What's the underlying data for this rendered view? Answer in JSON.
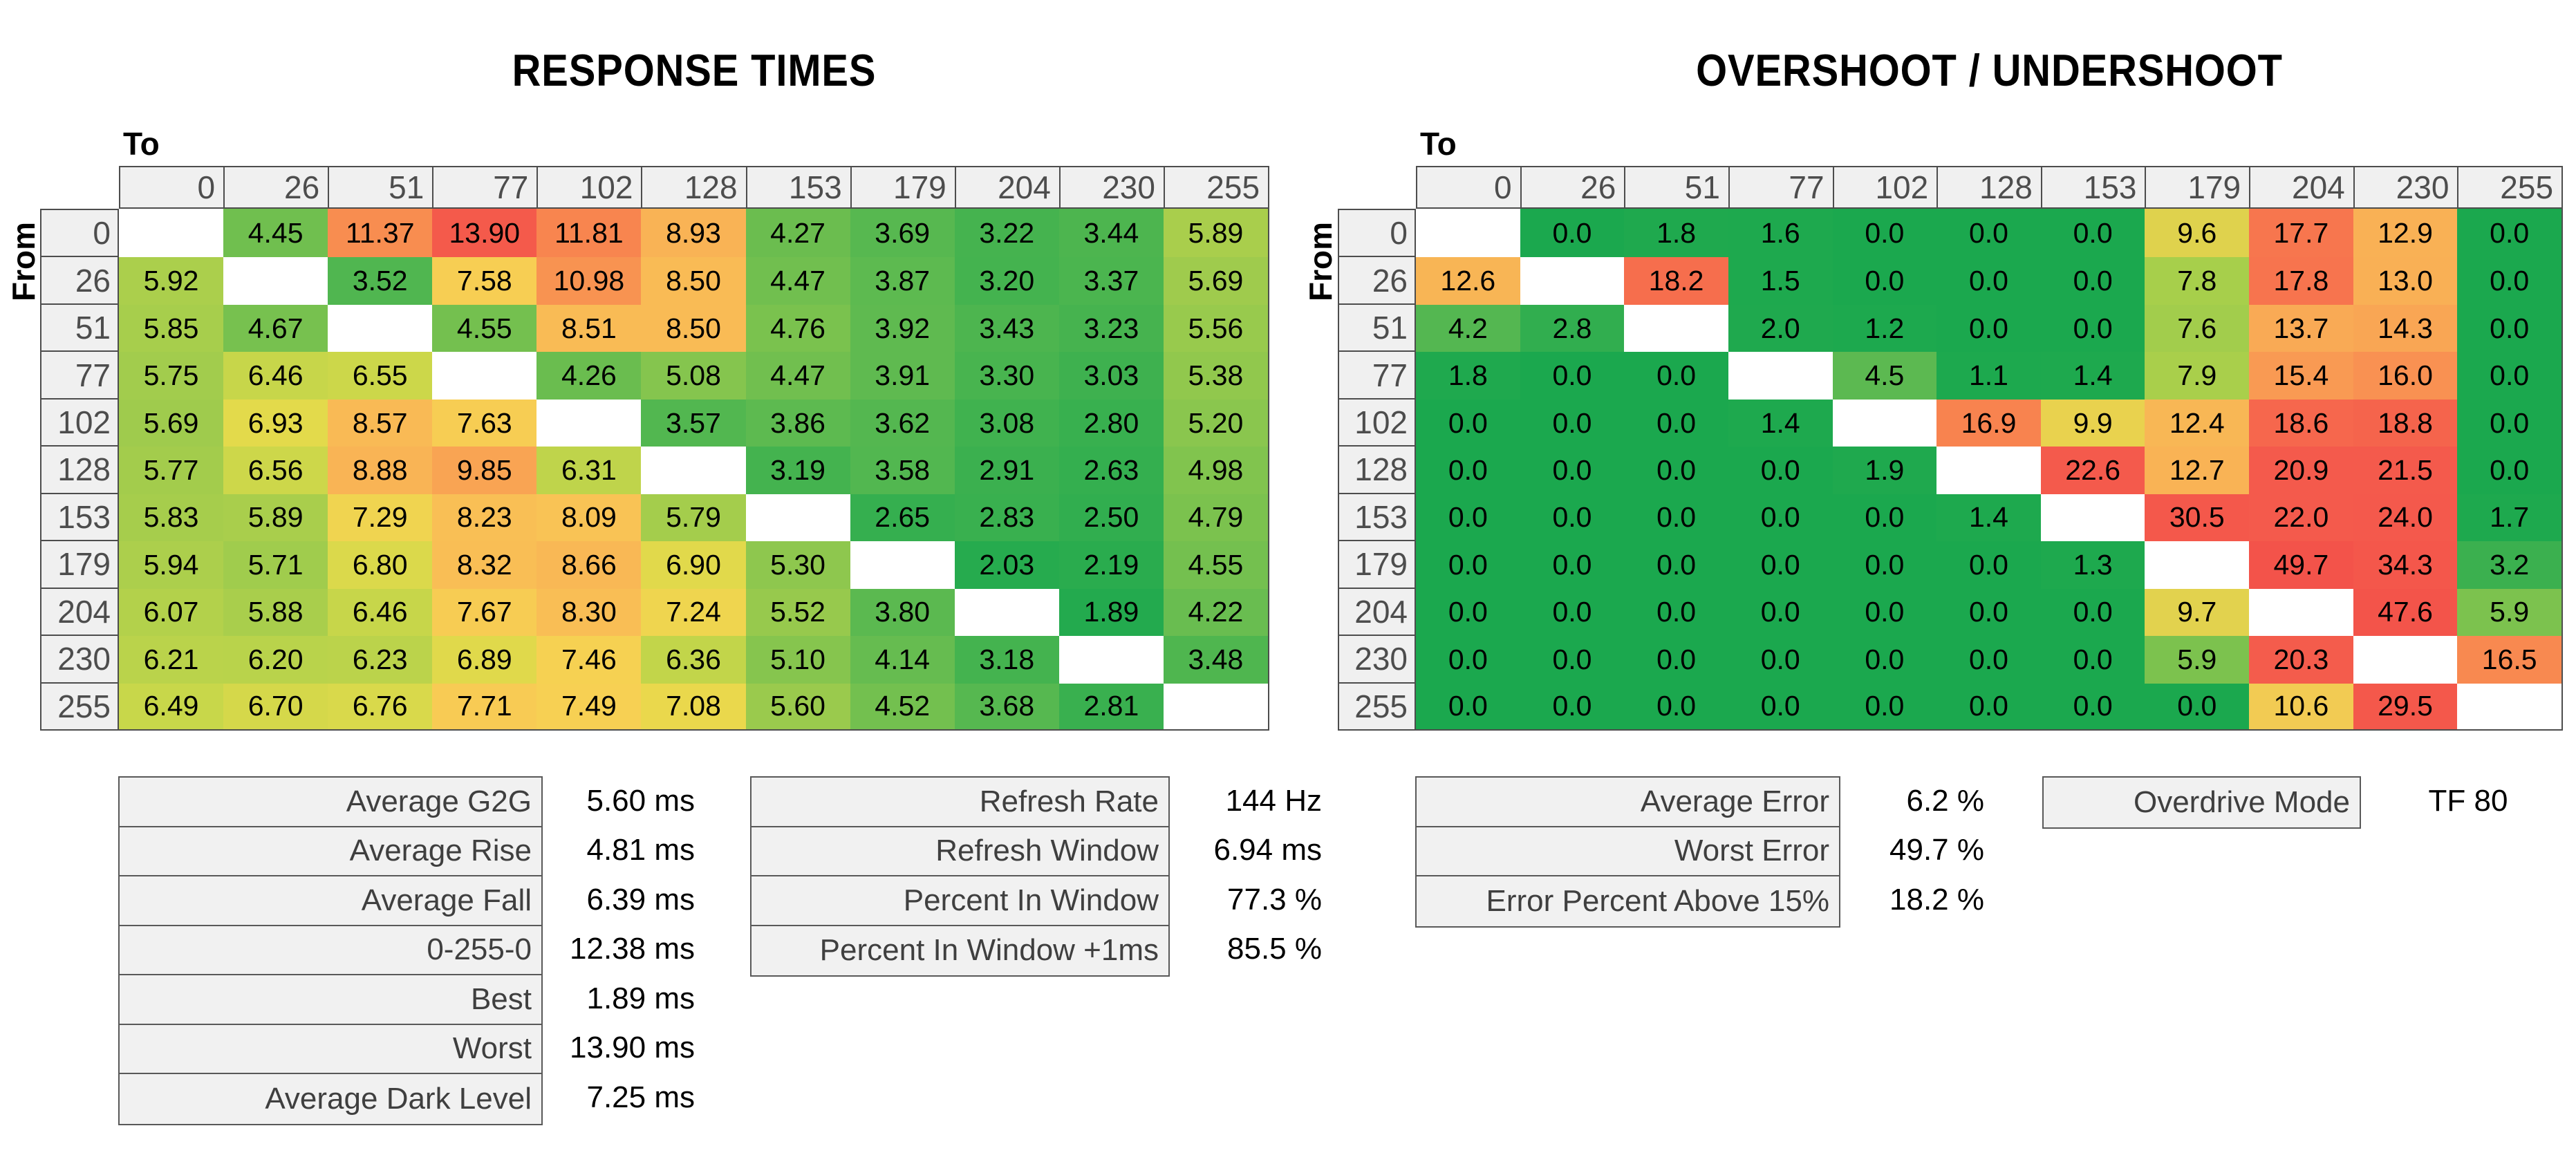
{
  "titles": {
    "response": "RESPONSE TIMES",
    "overshoot": "OVERSHOOT / UNDERSHOOT"
  },
  "axis": {
    "to": "To",
    "from": "From"
  },
  "levels": [
    "0",
    "26",
    "51",
    "77",
    "102",
    "128",
    "153",
    "179",
    "204",
    "230",
    "255"
  ],
  "colors": {
    "background": "#ffffff",
    "heatmap_header_bg": "#f0f0f0",
    "heatmap_border": "#4d4d4d",
    "heatmap_header_text": "#4d4d4d",
    "heatmap_cell_text": "#000000",
    "diagonal_bg": "#ffffff",
    "stats_bg": "#f1f1f1",
    "stats_border": "#595959",
    "stats_label_text": "#3f3f3f",
    "stats_value_text": "#000000",
    "scale_green": "#1ba84e",
    "scale_yellow": "#ecd24e",
    "scale_red": "#f3534a"
  },
  "chart_data": [
    {
      "type": "heatmap",
      "title": "RESPONSE TIMES",
      "xlabel": "To",
      "ylabel": "From",
      "unit": "ms",
      "categories": [
        "0",
        "26",
        "51",
        "77",
        "102",
        "128",
        "153",
        "179",
        "204",
        "230",
        "255"
      ],
      "values": [
        [
          null,
          "4.45",
          "11.37",
          "13.90",
          "11.81",
          "8.93",
          "4.27",
          "3.69",
          "3.22",
          "3.44",
          "5.89"
        ],
        [
          "5.92",
          null,
          "3.52",
          "7.58",
          "10.98",
          "8.50",
          "4.47",
          "3.87",
          "3.20",
          "3.37",
          "5.69"
        ],
        [
          "5.85",
          "4.67",
          null,
          "4.55",
          "8.51",
          "8.50",
          "4.76",
          "3.92",
          "3.43",
          "3.23",
          "5.56"
        ],
        [
          "5.75",
          "6.46",
          "6.55",
          null,
          "4.26",
          "5.08",
          "4.47",
          "3.91",
          "3.30",
          "3.03",
          "5.38"
        ],
        [
          "5.69",
          "6.93",
          "8.57",
          "7.63",
          null,
          "3.57",
          "3.86",
          "3.62",
          "3.08",
          "2.80",
          "5.20"
        ],
        [
          "5.77",
          "6.56",
          "8.88",
          "9.85",
          "6.31",
          null,
          "3.19",
          "3.58",
          "2.91",
          "2.63",
          "4.98"
        ],
        [
          "5.83",
          "5.89",
          "7.29",
          "8.23",
          "8.09",
          "5.79",
          null,
          "2.65",
          "2.83",
          "2.50",
          "4.79"
        ],
        [
          "5.94",
          "5.71",
          "6.80",
          "8.32",
          "8.66",
          "6.90",
          "5.30",
          null,
          "2.03",
          "2.19",
          "4.55"
        ],
        [
          "6.07",
          "5.88",
          "6.46",
          "7.67",
          "8.30",
          "7.24",
          "5.52",
          "3.80",
          null,
          "1.89",
          "4.22"
        ],
        [
          "6.21",
          "6.20",
          "6.23",
          "6.89",
          "7.46",
          "6.36",
          "5.10",
          "4.14",
          "3.18",
          null,
          "3.48"
        ],
        [
          "6.49",
          "6.70",
          "6.76",
          "7.71",
          "7.49",
          "7.08",
          "5.60",
          "4.52",
          "3.68",
          "2.81",
          null
        ]
      ],
      "color_stops": [
        [
          1.89,
          "#23aa4e"
        ],
        [
          3.0,
          "#3db14f"
        ],
        [
          4.0,
          "#62bb50"
        ],
        [
          5.0,
          "#82c44e"
        ],
        [
          5.6,
          "#9aca4d"
        ],
        [
          6.5,
          "#c9d74a"
        ],
        [
          7.0,
          "#e7da4b"
        ],
        [
          7.5,
          "#f7d053"
        ],
        [
          8.2,
          "#f9c055"
        ],
        [
          9.0,
          "#f9b255"
        ],
        [
          10.0,
          "#f9a253"
        ],
        [
          11.5,
          "#f88b50"
        ],
        [
          12.5,
          "#f7784e"
        ],
        [
          13.9,
          "#f45a4b"
        ]
      ]
    },
    {
      "type": "heatmap",
      "title": "OVERSHOOT / UNDERSHOOT",
      "xlabel": "To",
      "ylabel": "From",
      "unit": "%",
      "categories": [
        "0",
        "26",
        "51",
        "77",
        "102",
        "128",
        "153",
        "179",
        "204",
        "230",
        "255"
      ],
      "values": [
        [
          null,
          "0.0",
          "1.8",
          "1.6",
          "0.0",
          "0.0",
          "0.0",
          "9.6",
          "17.7",
          "12.9",
          "0.0"
        ],
        [
          "12.6",
          null,
          "18.2",
          "1.5",
          "0.0",
          "0.0",
          "0.0",
          "7.8",
          "17.8",
          "13.0",
          "0.0"
        ],
        [
          "4.2",
          "2.8",
          null,
          "2.0",
          "1.2",
          "0.0",
          "0.0",
          "7.6",
          "13.7",
          "14.3",
          "0.0"
        ],
        [
          "1.8",
          "0.0",
          "0.0",
          null,
          "4.5",
          "1.1",
          "1.4",
          "7.9",
          "15.4",
          "16.0",
          "0.0"
        ],
        [
          "0.0",
          "0.0",
          "0.0",
          "1.4",
          null,
          "16.9",
          "9.9",
          "12.4",
          "18.6",
          "18.8",
          "0.0"
        ],
        [
          "0.0",
          "0.0",
          "0.0",
          "0.0",
          "1.9",
          null,
          "22.6",
          "12.7",
          "20.9",
          "21.5",
          "0.0"
        ],
        [
          "0.0",
          "0.0",
          "0.0",
          "0.0",
          "0.0",
          "1.4",
          null,
          "30.5",
          "22.0",
          "24.0",
          "1.7"
        ],
        [
          "0.0",
          "0.0",
          "0.0",
          "0.0",
          "0.0",
          "0.0",
          "1.3",
          null,
          "49.7",
          "34.3",
          "3.2"
        ],
        [
          "0.0",
          "0.0",
          "0.0",
          "0.0",
          "0.0",
          "0.0",
          "0.0",
          "9.7",
          null,
          "47.6",
          "5.9"
        ],
        [
          "0.0",
          "0.0",
          "0.0",
          "0.0",
          "0.0",
          "0.0",
          "0.0",
          "5.9",
          "20.3",
          null,
          "16.5"
        ],
        [
          "0.0",
          "0.0",
          "0.0",
          "0.0",
          "0.0",
          "0.0",
          "0.0",
          "0.0",
          "10.6",
          "29.5",
          null
        ]
      ],
      "color_stops": [
        [
          0,
          "#1ba84e"
        ],
        [
          2,
          "#1fa94e"
        ],
        [
          3,
          "#36af4f"
        ],
        [
          4.5,
          "#5cb951"
        ],
        [
          6,
          "#7ec34e"
        ],
        [
          8,
          "#abd04b"
        ],
        [
          10,
          "#ecd24e"
        ],
        [
          11,
          "#f6c756"
        ],
        [
          13,
          "#f9b055"
        ],
        [
          15,
          "#f9a054"
        ],
        [
          17,
          "#f8814f"
        ],
        [
          19,
          "#f5614c"
        ],
        [
          21,
          "#f45a4c"
        ],
        [
          50,
          "#f3534a"
        ]
      ]
    }
  ],
  "stats": {
    "response_summary": [
      {
        "label": "Average G2G",
        "value": "5.60 ms"
      },
      {
        "label": "Average Rise",
        "value": "4.81 ms"
      },
      {
        "label": "Average Fall",
        "value": "6.39 ms"
      },
      {
        "label": "0-255-0",
        "value": "12.38 ms"
      },
      {
        "label": "Best",
        "value": "1.89 ms"
      },
      {
        "label": "Worst",
        "value": "13.90 ms"
      },
      {
        "label": "Average Dark Level",
        "value": "7.25 ms"
      }
    ],
    "refresh_summary": [
      {
        "label": "Refresh Rate",
        "value": "144 Hz"
      },
      {
        "label": "Refresh Window",
        "value": "6.94 ms"
      },
      {
        "label": "Percent In Window",
        "value": "77.3 %"
      },
      {
        "label": "Percent In Window +1ms",
        "value": "85.5 %"
      }
    ],
    "error_summary": [
      {
        "label": "Average Error",
        "value": "6.2 %"
      },
      {
        "label": "Worst Error",
        "value": "49.7 %"
      },
      {
        "label": "Error Percent Above 15%",
        "value": "18.2 %"
      }
    ],
    "overdrive": [
      {
        "label": "Overdrive Mode",
        "value": "TF 80"
      }
    ]
  }
}
